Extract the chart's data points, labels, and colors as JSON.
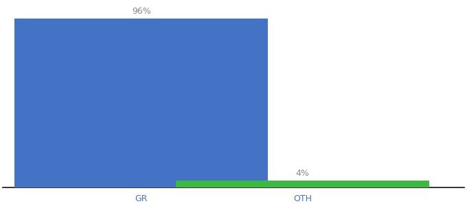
{
  "categories": [
    "GR",
    "OTH"
  ],
  "values": [
    96,
    4
  ],
  "bar_colors": [
    "#4472c4",
    "#3db843"
  ],
  "ylim": [
    0,
    105
  ],
  "bar_labels": [
    "96%",
    "4%"
  ],
  "background_color": "#ffffff",
  "label_fontsize": 9,
  "tick_fontsize": 9,
  "bar_width": 0.55,
  "x_positions": [
    0.3,
    0.65
  ],
  "xlim": [
    0.0,
    1.0
  ],
  "tick_color": "#4472c4"
}
